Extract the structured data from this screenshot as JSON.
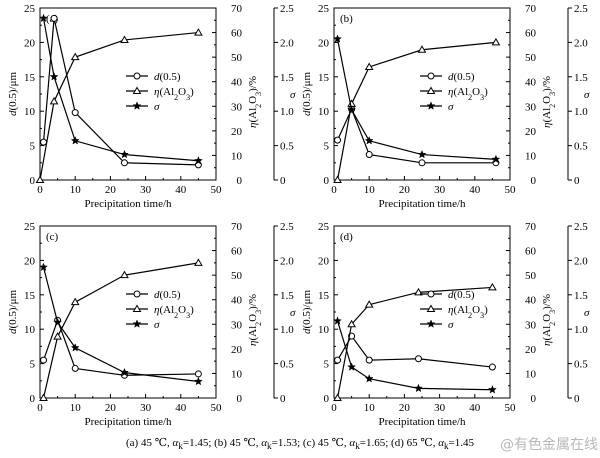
{
  "chart_data": [
    {
      "type": "line",
      "panel_label": "(a)",
      "xlabel": "Precipitation time/h",
      "ylabel_left": "d(0.5)/μm",
      "ylabel_right1": "η(Al2O3)/%",
      "ylabel_right2": "σ",
      "xlim": [
        0,
        50
      ],
      "xticks": [
        0,
        10,
        20,
        30,
        40,
        50
      ],
      "ylim_left": [
        0,
        25
      ],
      "yticks_left": [
        0,
        5,
        10,
        15,
        20,
        25
      ],
      "ylim_right1": [
        0,
        70
      ],
      "yticks_right1": [
        0,
        10,
        20,
        30,
        40,
        50,
        60,
        70
      ],
      "ylim_right2": [
        0,
        2.5
      ],
      "yticks_right2": [
        "0",
        "0.5",
        "1.0",
        "1.5",
        "2.0",
        "2.5"
      ],
      "legend": [
        "d(0.5)",
        "η(Al2O3)",
        "σ"
      ],
      "series": [
        {
          "name": "d(0.5)",
          "marker": "circle",
          "axis": "left",
          "x": [
            1,
            4,
            10,
            24,
            45
          ],
          "y": [
            5.5,
            23.5,
            9.8,
            2.5,
            2.2
          ]
        },
        {
          "name": "η(Al2O3)",
          "marker": "triangle",
          "axis": "right1",
          "x": [
            0,
            4,
            10,
            24,
            45
          ],
          "y": [
            0,
            32,
            50,
            57,
            60
          ]
        },
        {
          "name": "σ",
          "marker": "star",
          "axis": "right2",
          "x": [
            1,
            4,
            10,
            24,
            45
          ],
          "y": [
            2.35,
            1.5,
            0.57,
            0.37,
            0.28
          ]
        }
      ]
    },
    {
      "type": "line",
      "panel_label": "(b)",
      "xlabel": "Precipitation time/h",
      "ylabel_left": "d(0.5)/μm",
      "ylabel_right1": "η(Al2O3)/%",
      "ylabel_right2": "σ",
      "xlim": [
        0,
        50
      ],
      "xticks": [
        0,
        10,
        20,
        30,
        40,
        50
      ],
      "ylim_left": [
        0,
        25
      ],
      "yticks_left": [
        0,
        5,
        10,
        15,
        20,
        25
      ],
      "ylim_right1": [
        0,
        70
      ],
      "yticks_right1": [
        0,
        10,
        20,
        30,
        40,
        50,
        60,
        70
      ],
      "ylim_right2": [
        0,
        2.5
      ],
      "yticks_right2": [
        "0",
        "0.5",
        "1.0",
        "1.5",
        "2.0",
        "2.5"
      ],
      "legend": [
        "d(0.5)",
        "η(Al2O3)",
        "σ"
      ],
      "series": [
        {
          "name": "d(0.5)",
          "marker": "circle",
          "axis": "left",
          "x": [
            1,
            5,
            10,
            25,
            46
          ],
          "y": [
            5.8,
            10.3,
            3.7,
            2.5,
            2.5
          ]
        },
        {
          "name": "η(Al2O3)",
          "marker": "triangle",
          "axis": "right1",
          "x": [
            1,
            5,
            10,
            25,
            46
          ],
          "y": [
            0,
            31,
            46,
            53,
            56
          ]
        },
        {
          "name": "σ",
          "marker": "star",
          "axis": "right2",
          "x": [
            1,
            5,
            10,
            25,
            46
          ],
          "y": [
            2.05,
            1.02,
            0.57,
            0.37,
            0.3
          ]
        }
      ]
    },
    {
      "type": "line",
      "panel_label": "(c)",
      "xlabel": "Precipitation time/h",
      "ylabel_left": "d(0.5)/μm",
      "ylabel_right1": "η(Al2O3)/%",
      "ylabel_right2": "σ",
      "xlim": [
        0,
        50
      ],
      "xticks": [
        0,
        10,
        20,
        30,
        40,
        50
      ],
      "ylim_left": [
        0,
        25
      ],
      "yticks_left": [
        0,
        5,
        10,
        15,
        20,
        25
      ],
      "ylim_right1": [
        0,
        70
      ],
      "yticks_right1": [
        0,
        10,
        20,
        30,
        40,
        50,
        60,
        70
      ],
      "ylim_right2": [
        0,
        2.5
      ],
      "yticks_right2": [
        "0",
        "0.5",
        "1.0",
        "1.5",
        "2.0",
        "2.5"
      ],
      "legend": [
        "d(0.5)",
        "η(Al2O3)",
        "σ"
      ],
      "series": [
        {
          "name": "d(0.5)",
          "marker": "circle",
          "axis": "left",
          "x": [
            1,
            5,
            10,
            24,
            45
          ],
          "y": [
            5.5,
            11.3,
            4.3,
            3.3,
            3.5
          ]
        },
        {
          "name": "η(Al2O3)",
          "marker": "triangle",
          "axis": "right1",
          "x": [
            1,
            5,
            10,
            24,
            45
          ],
          "y": [
            0,
            25,
            39,
            50,
            55
          ]
        },
        {
          "name": "σ",
          "marker": "star",
          "axis": "right2",
          "x": [
            1,
            5,
            10,
            24,
            45
          ],
          "y": [
            1.9,
            1.1,
            0.73,
            0.37,
            0.24
          ]
        }
      ]
    },
    {
      "type": "line",
      "panel_label": "(d)",
      "xlabel": "Precipitation time/h",
      "ylabel_left": "d(0.5)/μm",
      "ylabel_right1": "η(Al2O3)/%",
      "ylabel_right2": "σ",
      "xlim": [
        0,
        50
      ],
      "xticks": [
        0,
        10,
        20,
        30,
        40,
        50
      ],
      "ylim_left": [
        0,
        25
      ],
      "yticks_left": [
        0,
        5,
        10,
        15,
        20,
        25
      ],
      "ylim_right1": [
        0,
        70
      ],
      "yticks_right1": [
        0,
        10,
        20,
        30,
        40,
        50,
        60,
        70
      ],
      "ylim_right2": [
        0,
        2.5
      ],
      "yticks_right2": [
        "0",
        "0.5",
        "1.0",
        "1.5",
        "2.0",
        "2.5"
      ],
      "legend": [
        "d(0.5)",
        "η(Al2O3)",
        "σ"
      ],
      "series": [
        {
          "name": "d(0.5)",
          "marker": "circle",
          "axis": "left",
          "x": [
            1,
            5,
            10,
            24,
            45
          ],
          "y": [
            5.5,
            9.0,
            5.5,
            5.7,
            4.5
          ]
        },
        {
          "name": "η(Al2O3)",
          "marker": "triangle",
          "axis": "right1",
          "x": [
            1,
            5,
            10,
            24,
            45
          ],
          "y": [
            0,
            30,
            38,
            43,
            45
          ]
        },
        {
          "name": "σ",
          "marker": "star",
          "axis": "right2",
          "x": [
            1,
            5,
            10,
            24,
            45
          ],
          "y": [
            1.12,
            0.45,
            0.28,
            0.14,
            0.12
          ]
        }
      ]
    }
  ],
  "caption": {
    "a": "(a) 45 ℃, ",
    "a_alpha": "1.45",
    "b": "; (b) 45 ℃, ",
    "b_alpha": "1.53",
    "c": "; (c) 45 ℃, ",
    "c_alpha": "1.65",
    "d": "; (d) 65 ℃, ",
    "d_alpha": "1.45"
  },
  "watermark": "@有色金属在线"
}
